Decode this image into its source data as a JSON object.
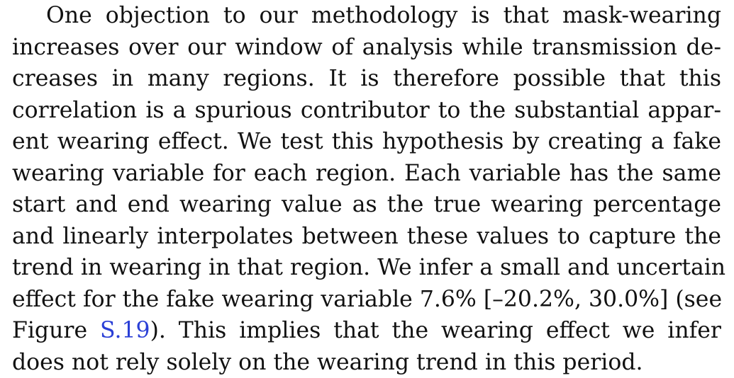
{
  "paragraph": {
    "lines": [
      "One objection to our methodology is that mask-wearing",
      "increases over our window of analysis while transmission de-",
      "creases in many regions.  It is therefore possible that this",
      "correlation is a spurious contributor to the substantial appar-",
      "ent wearing effect. We test this hypothesis by creating a fake",
      "wearing variable for each region. Each variable has the same",
      "start and end wearing value as the true wearing percentage",
      "and linearly interpolates between these values to capture the",
      "trend in wearing in that region. We infer a small and uncertain",
      "effect for the fake wearing variable 7.6% [–20.2%, 30.0%] (see"
    ],
    "line_11": {
      "before_link": "Figure ",
      "link_text": "S.19",
      "after_link": ").  This implies that the wearing effect we infer"
    },
    "line_12": "does not rely solely on the wearing trend in this period."
  },
  "colors": {
    "text": "#111111",
    "link": "#2a3fd6"
  }
}
